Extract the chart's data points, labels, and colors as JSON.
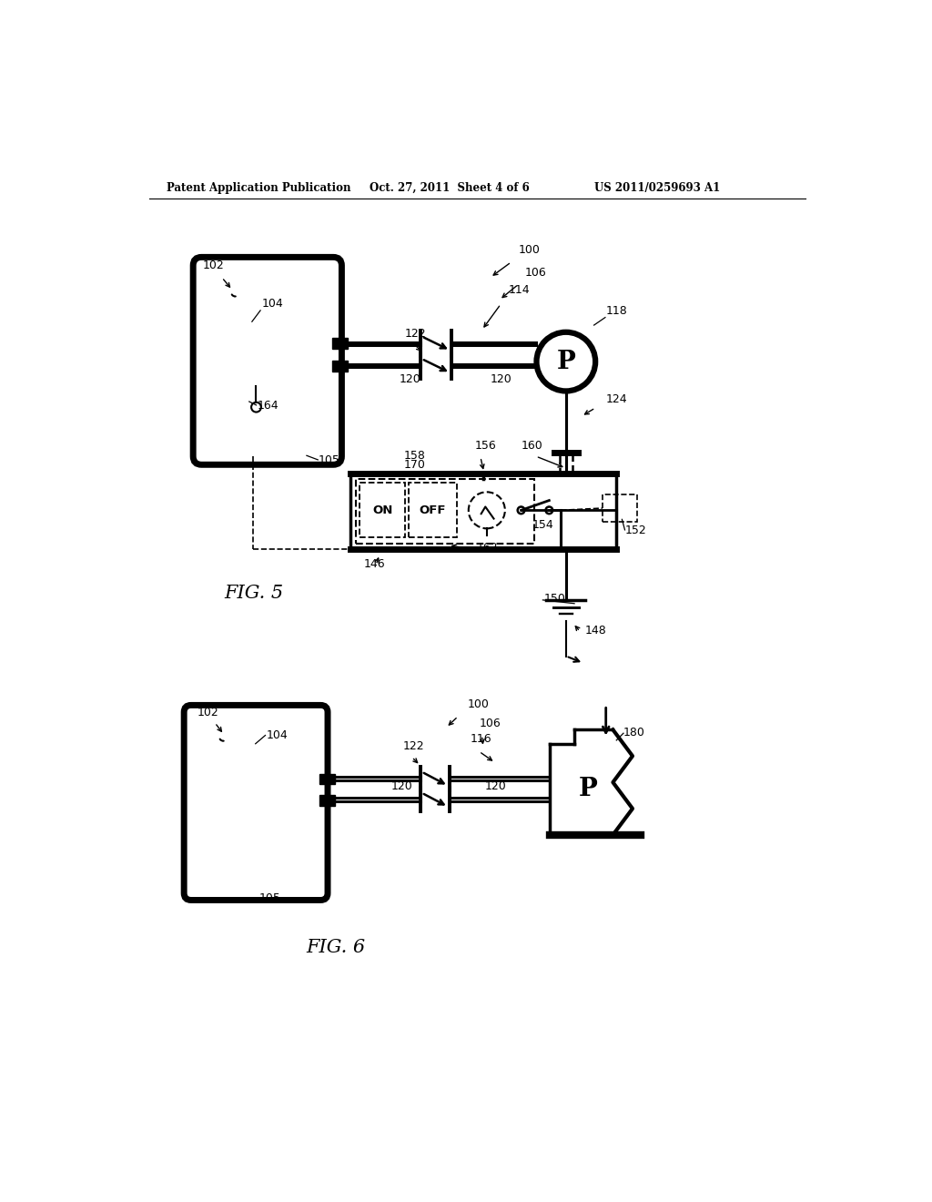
{
  "header_left": "Patent Application Publication",
  "header_middle": "Oct. 27, 2011  Sheet 4 of 6",
  "header_right": "US 2011/0259693 A1",
  "fig5_label": "FIG. 5",
  "fig6_label": "FIG. 6",
  "bg_color": "#ffffff",
  "line_color": "#000000",
  "text_color": "#000000"
}
